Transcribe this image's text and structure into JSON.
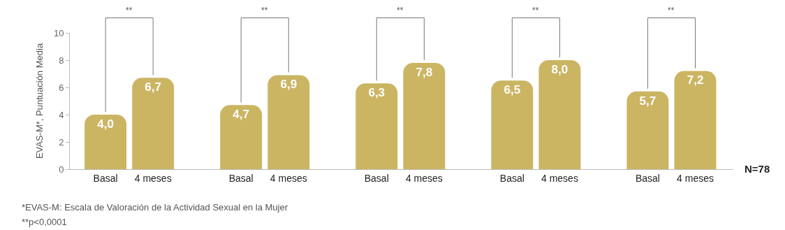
{
  "chart_data": {
    "type": "bar",
    "ylabel": "EVAS-M*, Puntuación Media",
    "categories": [
      "Basal",
      "4 meses",
      "Basal",
      "4 meses",
      "Basal",
      "4 meses",
      "Basal",
      "4 meses",
      "Basal",
      "4 meses"
    ],
    "values": [
      4.0,
      6.7,
      4.7,
      6.9,
      6.3,
      7.8,
      6.5,
      8.0,
      5.7,
      7.2
    ],
    "value_labels": [
      "4,0",
      "6,7",
      "4,7",
      "6,9",
      "6,3",
      "7,8",
      "6,5",
      "8,0",
      "5,7",
      "7,2"
    ],
    "color": "#cbb563",
    "ylim": [
      0,
      10
    ],
    "yticks": [
      0,
      2,
      4,
      6,
      8,
      10
    ],
    "annotations": [
      "**",
      "**",
      "**",
      "**",
      "**",
      "N=78",
      "*EVAS-M: Escala de Valoración de la Actividad Sexual en la Mujer",
      "**p<0,0001"
    ]
  }
}
